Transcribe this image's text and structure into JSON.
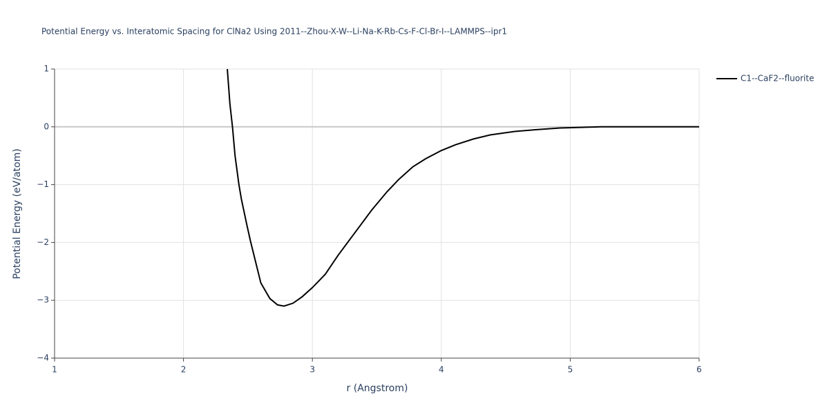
{
  "chart_data": {
    "type": "line",
    "title": "Potential Energy vs. Interatomic Spacing for ClNa2 Using 2011--Zhou-X-W--Li-Na-K-Rb-Cs-F-Cl-Br-I--LAMMPS--ipr1",
    "xlabel": "r (Angstrom)",
    "ylabel": "Potential Energy (eV/atom)",
    "x": [
      2.34,
      2.36,
      2.38,
      2.4,
      2.43,
      2.45,
      2.49,
      2.52,
      2.56,
      2.6,
      2.67,
      2.73,
      2.78,
      2.85,
      2.92,
      3.0,
      3.1,
      3.2,
      3.31,
      3.46,
      3.58,
      3.67,
      3.78,
      3.88,
      4.0,
      4.11,
      4.25,
      4.38,
      4.57,
      4.73,
      4.92,
      5.24,
      6.0
    ],
    "series": [
      {
        "name": "C1--CaF2--fluorite",
        "color": "#000000",
        "values": [
          1.0,
          0.4,
          0.0,
          -0.5,
          -1.0,
          -1.26,
          -1.68,
          -1.98,
          -2.34,
          -2.7,
          -2.97,
          -3.08,
          -3.1,
          -3.05,
          -2.94,
          -2.78,
          -2.55,
          -2.22,
          -1.89,
          -1.44,
          -1.12,
          -0.91,
          -0.69,
          -0.55,
          -0.41,
          -0.31,
          -0.21,
          -0.14,
          -0.08,
          -0.05,
          -0.02,
          0.0,
          0.0
        ]
      }
    ],
    "xlim": [
      1,
      6
    ],
    "ylim": [
      -4,
      1
    ],
    "xticks": [
      1,
      2,
      3,
      4,
      5,
      6
    ],
    "yticks": [
      1,
      0,
      {
        "value": -1,
        "label": "−1"
      },
      {
        "value": -2,
        "label": "−2"
      },
      {
        "value": -3,
        "label": "−3"
      },
      {
        "value": -4,
        "label": "−4"
      }
    ],
    "grid": true,
    "legend": "right"
  }
}
